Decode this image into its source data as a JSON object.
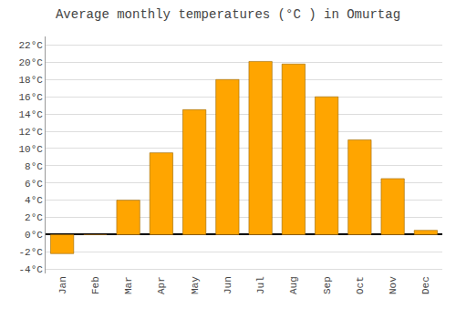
{
  "chart_data": {
    "type": "bar",
    "title": "Average monthly temperatures (°C ) in Omurtag",
    "categories": [
      "Jan",
      "Feb",
      "Mar",
      "Apr",
      "May",
      "Jun",
      "Jul",
      "Aug",
      "Sep",
      "Oct",
      "Nov",
      "Dec"
    ],
    "values": [
      -2.2,
      0.0,
      4.0,
      9.5,
      14.5,
      18.0,
      20.1,
      19.8,
      16.0,
      11.0,
      6.5,
      0.5
    ],
    "color": "#FFA500",
    "ylim": [
      -4.5,
      23
    ],
    "yticks": [
      {
        "value": -4,
        "label": "-4°C"
      },
      {
        "value": -2,
        "label": "-2°C"
      },
      {
        "value": 0,
        "label": "0°C"
      },
      {
        "value": 2,
        "label": "2°C"
      },
      {
        "value": 4,
        "label": "4°C"
      },
      {
        "value": 6,
        "label": "6°C"
      },
      {
        "value": 8,
        "label": "8°C"
      },
      {
        "value": 10,
        "label": "10°C"
      },
      {
        "value": 12,
        "label": "12°C"
      },
      {
        "value": 14,
        "label": "14°C"
      },
      {
        "value": 16,
        "label": "16°C"
      },
      {
        "value": 18,
        "label": "18°C"
      },
      {
        "value": 20,
        "label": "20°C"
      },
      {
        "value": 22,
        "label": "22°C"
      }
    ],
    "grid": true
  }
}
